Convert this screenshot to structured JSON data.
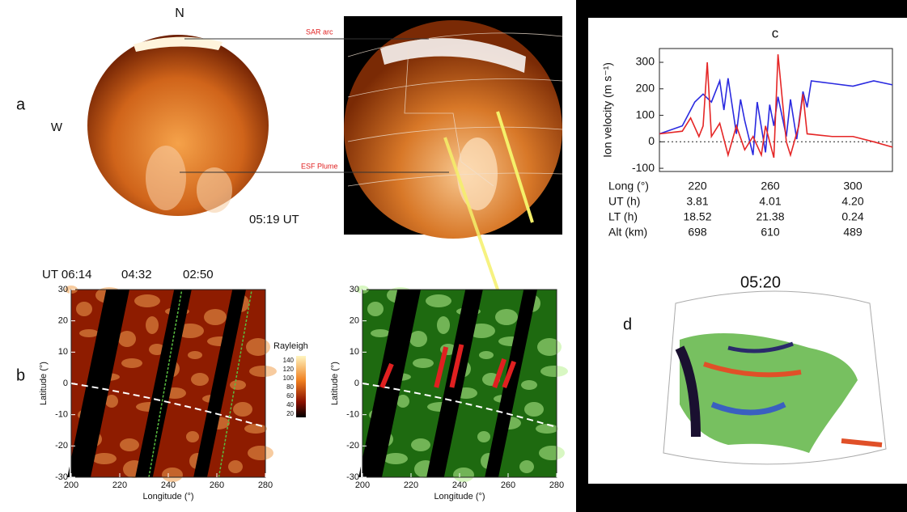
{
  "panel_a": {
    "label": "a",
    "north": "N",
    "west": "W",
    "time": "05:19 UT",
    "sar_label": "SAR arc",
    "esf_label": "ESF Plume"
  },
  "panel_b": {
    "label": "b",
    "times": [
      "UT 06:14",
      "04:32",
      "02:50"
    ],
    "ylabel": "Latitude (°)",
    "xlabel": "Longitude (°)",
    "xlim": [
      200,
      280
    ],
    "ylim": [
      -30,
      30
    ],
    "xticks": [
      200,
      220,
      240,
      260,
      280
    ],
    "yticks": [
      -30,
      -20,
      -10,
      0,
      10,
      20,
      30
    ],
    "colorbar": {
      "label": "Rayleigh",
      "ticks": [
        140,
        120,
        100,
        80,
        60,
        40,
        20
      ]
    }
  },
  "panel_c": {
    "title": "c",
    "ylabel": "Ion velocity (m s⁻¹)",
    "xlim": [
      207,
      319
    ],
    "ylim": [
      -112,
      352
    ],
    "yticks": [
      -100,
      0,
      100,
      200,
      300
    ],
    "series": [
      {
        "color": "#2a2ae0",
        "x": [
          207,
          218,
          224,
          228,
          232,
          236,
          238,
          240,
          244,
          246,
          248,
          252,
          254,
          258,
          260,
          262,
          264,
          268,
          270,
          273,
          276,
          278,
          280,
          290,
          300,
          310,
          319
        ],
        "values": [
          30,
          60,
          150,
          180,
          150,
          230,
          120,
          240,
          30,
          160,
          80,
          -50,
          150,
          -40,
          140,
          60,
          170,
          20,
          160,
          10,
          190,
          130,
          230,
          220,
          210,
          230,
          215
        ]
      },
      {
        "color": "#e52626",
        "x": [
          207,
          218,
          222,
          226,
          228,
          230,
          232,
          236,
          240,
          244,
          248,
          252,
          256,
          258,
          262,
          264,
          268,
          270,
          274,
          276,
          278,
          290,
          300,
          310,
          319
        ],
        "values": [
          30,
          40,
          90,
          20,
          60,
          300,
          20,
          70,
          -50,
          60,
          -30,
          20,
          -50,
          60,
          -60,
          330,
          0,
          -50,
          60,
          180,
          30,
          20,
          20,
          0,
          -20
        ]
      }
    ],
    "table": {
      "rows": [
        [
          "Long (°)",
          "220",
          "260",
          "300"
        ],
        [
          "UT (h)",
          "3.81",
          "4.01",
          "4.20"
        ],
        [
          "LT (h)",
          "18.52",
          "21.38",
          "0.24"
        ],
        [
          "Alt (km)",
          "698",
          "610",
          "489"
        ]
      ]
    }
  },
  "panel_d": {
    "label": "d",
    "time": "05:20"
  }
}
